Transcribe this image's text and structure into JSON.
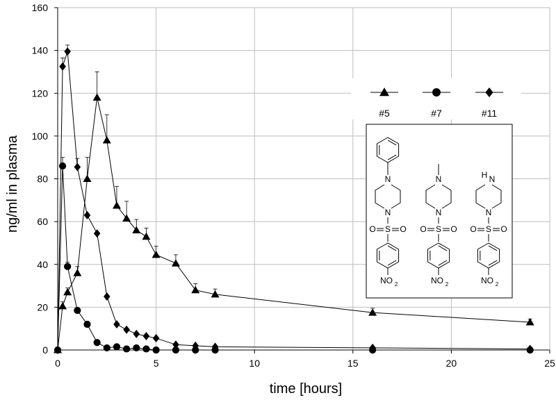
{
  "chart_data": {
    "type": "line",
    "xlabel": "time [hours]",
    "ylabel": "ng/ml in plasma",
    "xlim": [
      0,
      25
    ],
    "ylim": [
      0,
      160
    ],
    "xticks": [
      "0",
      "5",
      "10",
      "15",
      "20",
      "25"
    ],
    "yticks": [
      "0",
      "20",
      "40",
      "60",
      "80",
      "100",
      "120",
      "140",
      "160"
    ],
    "grid": true,
    "legend_position": "top-right",
    "series": [
      {
        "name": "#5",
        "marker": "triangle",
        "points": [
          {
            "x": 0,
            "y": 0
          },
          {
            "x": 0.25,
            "y": 20.5,
            "err": 2
          },
          {
            "x": 0.5,
            "y": 27,
            "err": 2
          },
          {
            "x": 1,
            "y": 36,
            "err": 3
          },
          {
            "x": 1.5,
            "y": 80,
            "err": 10
          },
          {
            "x": 2,
            "y": 118,
            "err": 12
          },
          {
            "x": 2.5,
            "y": 98,
            "err": 12
          },
          {
            "x": 3,
            "y": 67.5,
            "err": 9
          },
          {
            "x": 3.5,
            "y": 61.5,
            "err": 8
          },
          {
            "x": 4,
            "y": 56,
            "err": 5
          },
          {
            "x": 4.5,
            "y": 53,
            "err": 4
          },
          {
            "x": 5,
            "y": 44.5,
            "err": 4
          },
          {
            "x": 6,
            "y": 40.5,
            "err": 4
          },
          {
            "x": 7,
            "y": 28,
            "err": 3
          },
          {
            "x": 8,
            "y": 26,
            "err": 2.5
          },
          {
            "x": 16,
            "y": 17.5,
            "err": 2
          },
          {
            "x": 24,
            "y": 13,
            "err": 1.5
          }
        ]
      },
      {
        "name": "#7",
        "marker": "circle",
        "points": [
          {
            "x": 0,
            "y": 0
          },
          {
            "x": 0.25,
            "y": 86,
            "err": 4
          },
          {
            "x": 0.5,
            "y": 39,
            "err": 2
          },
          {
            "x": 1,
            "y": 18.5
          },
          {
            "x": 1.5,
            "y": 12
          },
          {
            "x": 2,
            "y": 3.5
          },
          {
            "x": 2.5,
            "y": 1
          },
          {
            "x": 3,
            "y": 1.5
          },
          {
            "x": 3.5,
            "y": 0.5
          },
          {
            "x": 4,
            "y": 1
          },
          {
            "x": 4.5,
            "y": 0.5
          },
          {
            "x": 5,
            "y": 0
          },
          {
            "x": 6,
            "y": 0
          },
          {
            "x": 7,
            "y": 0
          },
          {
            "x": 8,
            "y": 0
          },
          {
            "x": 16,
            "y": 0
          },
          {
            "x": 24,
            "y": 0
          }
        ]
      },
      {
        "name": "#11",
        "marker": "diamond",
        "points": [
          {
            "x": 0,
            "y": 0
          },
          {
            "x": 0.25,
            "y": 132.5,
            "err": 4
          },
          {
            "x": 0.5,
            "y": 139.5,
            "err": 3
          },
          {
            "x": 1,
            "y": 85.5,
            "err": 4
          },
          {
            "x": 1.5,
            "y": 63
          },
          {
            "x": 2,
            "y": 54.5
          },
          {
            "x": 2.5,
            "y": 25
          },
          {
            "x": 3,
            "y": 12
          },
          {
            "x": 3.5,
            "y": 9.5
          },
          {
            "x": 4,
            "y": 7.5
          },
          {
            "x": 4.5,
            "y": 6.5
          },
          {
            "x": 5,
            "y": 5.5
          },
          {
            "x": 6,
            "y": 2.5
          },
          {
            "x": 7,
            "y": 2
          },
          {
            "x": 8,
            "y": 1.5
          },
          {
            "x": 16,
            "y": 1
          },
          {
            "x": 24,
            "y": 0.5
          }
        ]
      }
    ]
  },
  "structures": {
    "nh_label": "H",
    "no2_main": "NO",
    "no2_sub": "2",
    "sulfonyl_s": "S",
    "sulfonyl_o": "O",
    "nitrogen": "N"
  }
}
